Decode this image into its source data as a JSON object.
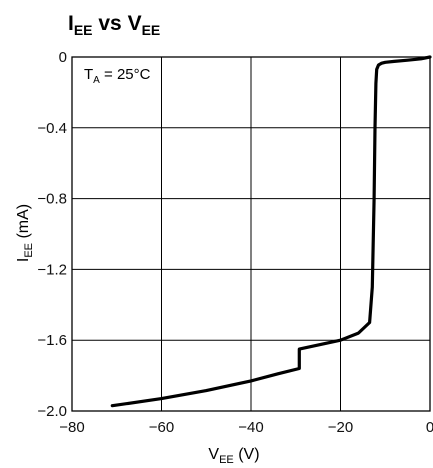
{
  "chart_data": {
    "type": "line",
    "title": {
      "main_1": "I",
      "sub_1": "EE",
      "mid": " vs ",
      "main_2": "V",
      "sub_2": "EE"
    },
    "annotation": {
      "main": "T",
      "sub": "A",
      "rest": " = 25°C"
    },
    "xlabel": {
      "main": "V",
      "sub": "EE",
      "unit": " (V)"
    },
    "ylabel": {
      "main": "I",
      "sub": "EE",
      "unit": " (mA)"
    },
    "xlim": [
      -80,
      0
    ],
    "ylim": [
      -2.0,
      0
    ],
    "grid": true,
    "xticks": [
      -80,
      -60,
      -40,
      -20,
      0
    ],
    "xtick_labels": [
      "−80",
      "−60",
      "−40",
      "−20",
      "0"
    ],
    "yticks": [
      0,
      -0.4,
      -0.8,
      -1.2,
      -1.6,
      -2.0
    ],
    "ytick_labels": [
      "0",
      "−0.4",
      "−0.8",
      "−1.2",
      "−1.6",
      "−2.0"
    ],
    "series": [
      {
        "x": [
          -71,
          -60,
          -50,
          -40,
          -34,
          -29.2,
          -29.2,
          -20,
          -16,
          -13.5,
          -12.9,
          -12.5,
          -12.3,
          -12.1,
          -11.9,
          -11.5,
          -10.8,
          -10.0,
          -8.0,
          -5.0,
          -2.0,
          0
        ],
        "y": [
          -1.97,
          -1.93,
          -1.885,
          -1.83,
          -1.79,
          -1.76,
          -1.65,
          -1.6,
          -1.56,
          -1.5,
          -1.3,
          -0.8,
          -0.4,
          -0.15,
          -0.07,
          -0.045,
          -0.035,
          -0.03,
          -0.025,
          -0.018,
          -0.01,
          0
        ]
      }
    ],
    "colors": {
      "line": "#000000",
      "grid": "#000000",
      "text": "#111111"
    }
  }
}
